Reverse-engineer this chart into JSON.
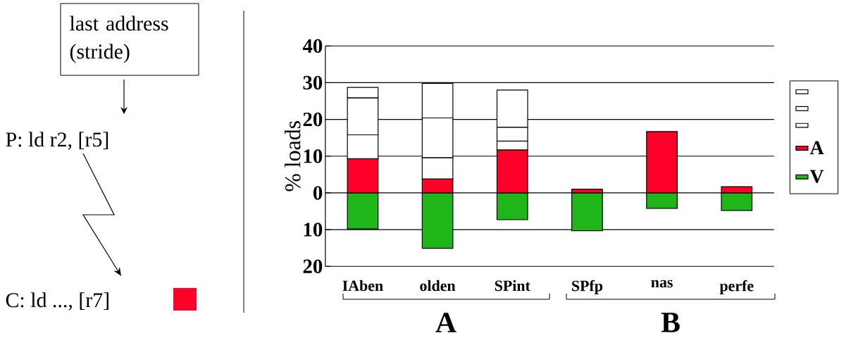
{
  "chart_data": {
    "type": "bar",
    "stacked": true,
    "ylabel": "% loads",
    "categories": [
      "IAben",
      "olden",
      "SPint",
      "SPfp",
      "nas",
      "perfe"
    ],
    "ylim": [
      -20,
      40
    ],
    "yticks": [
      {
        "value": -20,
        "label": "20"
      },
      {
        "value": -10,
        "label": "10"
      },
      0,
      10,
      20,
      30,
      40
    ],
    "grid": "y",
    "legend": "right",
    "series": [
      {
        "name": "V",
        "color": "#20b519",
        "values": [
          -9.8,
          -15.1,
          -7.3,
          -10.3,
          -4.2,
          -4.8
        ]
      },
      {
        "name": "A",
        "color": "#ff0029",
        "values": [
          9.3,
          3.8,
          11.7,
          1.0,
          16.7,
          1.7
        ]
      },
      {
        "color": "#ffffff",
        "values": [
          6.5,
          5.8,
          2.4,
          null,
          null,
          null
        ]
      },
      {
        "color": "#ffffff",
        "values": [
          10.1,
          10.8,
          3.8,
          null,
          null,
          null
        ]
      },
      {
        "color": "#ffffff",
        "values": [
          2.8,
          9.4,
          10.1,
          null,
          null,
          null
        ]
      }
    ],
    "annotations": [
      "A",
      "B",
      "last address (stride)",
      "P: ld r2, [r5]",
      "C: ld ..., [r7]"
    ]
  }
}
